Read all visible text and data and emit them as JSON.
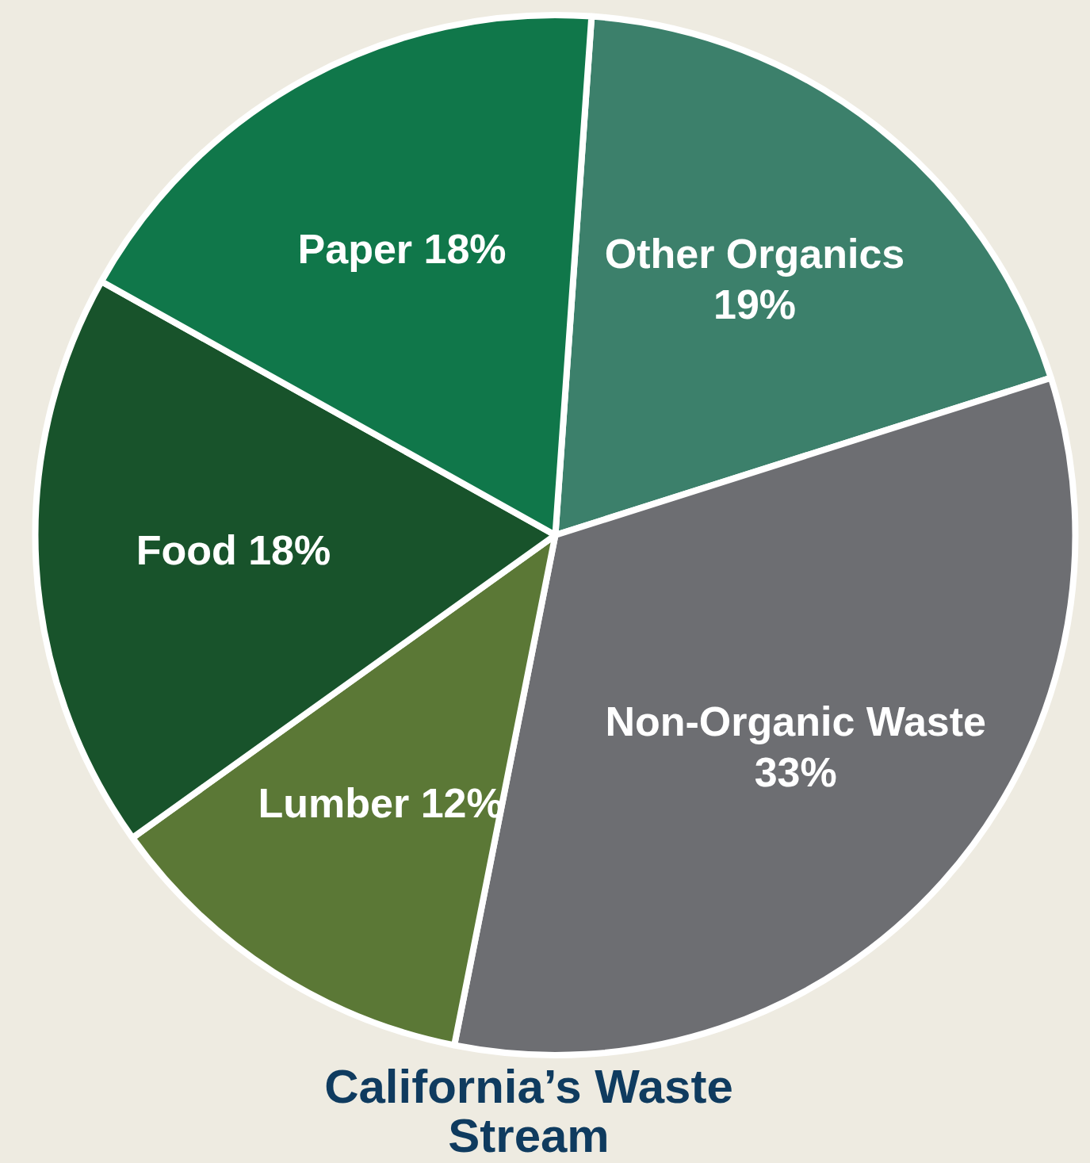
{
  "chart_data": {
    "type": "pie",
    "title": "California’s Waste Stream",
    "categories": [
      "Other Organics",
      "Non-Organic Waste",
      "Lumber",
      "Food",
      "Paper"
    ],
    "values": [
      19,
      33,
      12,
      18,
      18
    ],
    "value_labels": [
      "19%",
      "33%",
      "12%",
      "18%",
      "18%"
    ],
    "colors": [
      "#3c806b",
      "#6d6e72",
      "#5b7836",
      "#18532b",
      "#10774a"
    ],
    "legend": false
  }
}
